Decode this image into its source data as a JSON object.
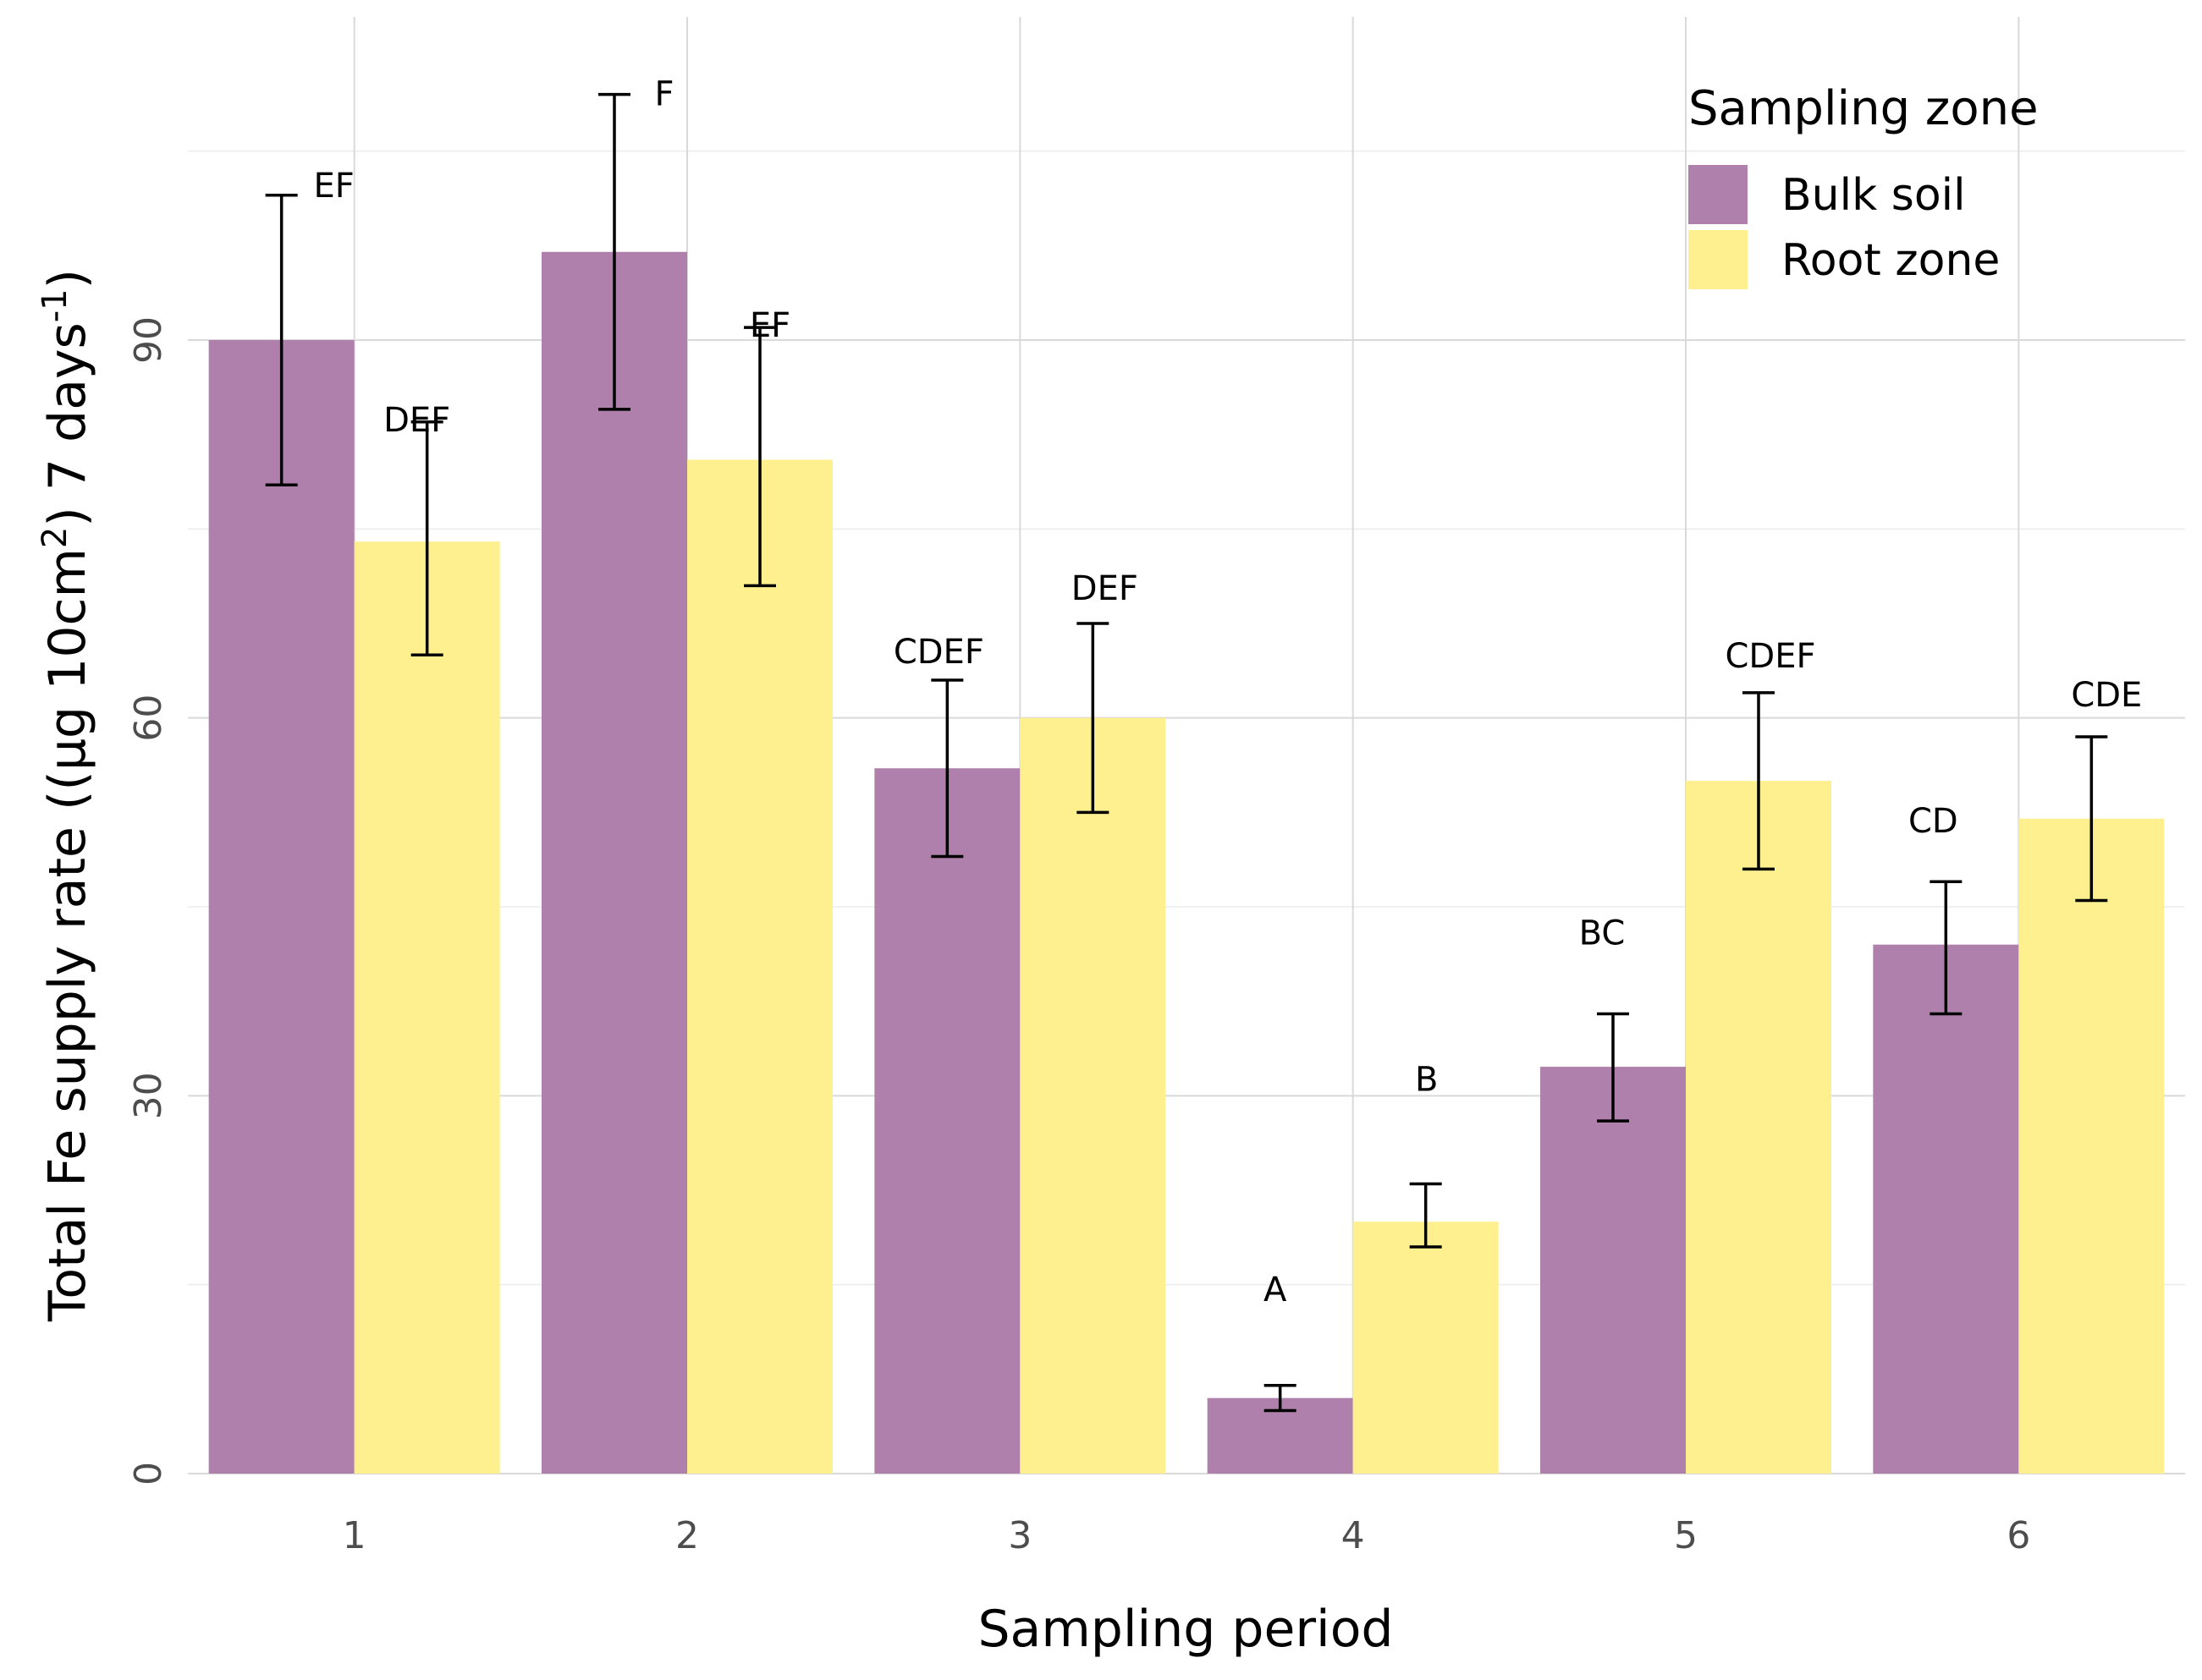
{
  "chart_data": {
    "type": "bar",
    "title": "",
    "xlabel": "Sampling period",
    "ylabel": "Total Fe supply rate ((µg 10cm",
    "ylabel_sup1": "2",
    "ylabel_mid": ") 7 days",
    "ylabel_sup2": "-1",
    "ylabel_end": ")",
    "categories": [
      "1",
      "2",
      "3",
      "4",
      "5",
      "6"
    ],
    "ylim": [
      0,
      112
    ],
    "yticks": [
      0,
      30,
      60,
      90
    ],
    "ytick_labels": [
      "0",
      "30",
      "60",
      "90"
    ],
    "legend": {
      "title": "Sampling zone",
      "position": "top-right"
    },
    "series": [
      {
        "name": "Bulk soil",
        "color": "#ae80ab",
        "values": [
          90,
          97,
          56,
          6,
          32.3,
          42
        ],
        "err_low": [
          78.5,
          84.5,
          49,
          5,
          28,
          36.5
        ],
        "err_high": [
          101.5,
          109.5,
          63,
          7,
          36.5,
          47
        ],
        "labels": [
          "EF",
          "F",
          "CDEF",
          "A",
          "BC",
          "CD"
        ]
      },
      {
        "name": "Root zone",
        "color": "#fff08f",
        "values": [
          74,
          80.5,
          60,
          20,
          55,
          52
        ],
        "err_low": [
          65,
          70.5,
          52.5,
          18,
          48,
          45.5
        ],
        "err_high": [
          83.5,
          91,
          67.5,
          23,
          62,
          58.5
        ],
        "labels": [
          "DEF",
          "EF",
          "DEF",
          "B",
          "CDEF",
          "CDE"
        ]
      }
    ]
  }
}
